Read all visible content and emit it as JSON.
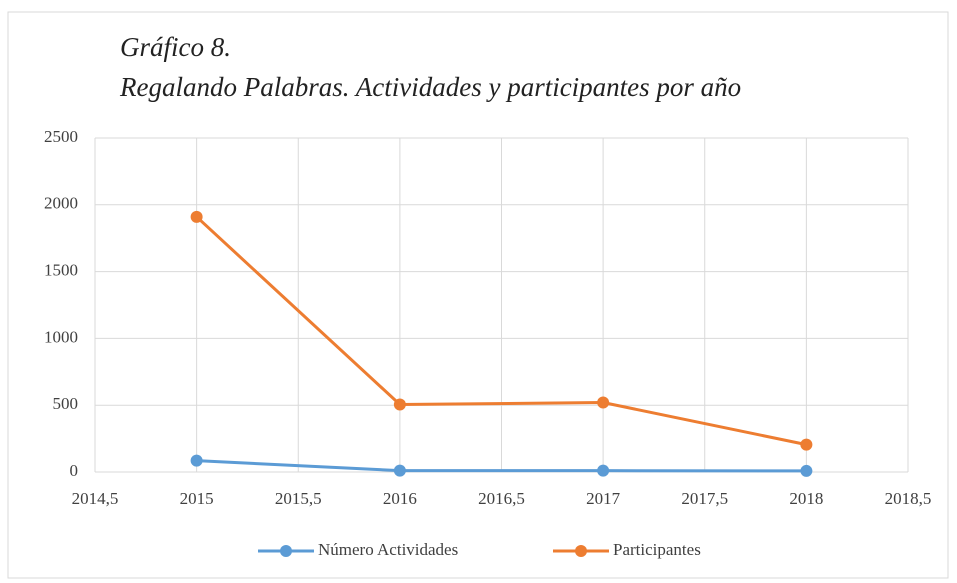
{
  "chart_data": {
    "type": "line",
    "title": "Gráfico 8.",
    "subtitle": "Regalando Palabras. Actividades y participantes por año",
    "x": [
      2015,
      2016,
      2017,
      2018
    ],
    "series": [
      {
        "name": "Número Actividades",
        "color": "#5b9bd5",
        "values": [
          85,
          10,
          10,
          8
        ]
      },
      {
        "name": "Participantes",
        "color": "#ed7d31",
        "values": [
          1910,
          505,
          520,
          205
        ]
      }
    ],
    "xlim": [
      2014.5,
      2018.5
    ],
    "xticks": [
      {
        "value": 2014.5,
        "label": "2014,5"
      },
      2015,
      {
        "value": 2015.5,
        "label": "2015,5"
      },
      2016,
      {
        "value": 2016.5,
        "label": "2016,5"
      },
      2017,
      {
        "value": 2017.5,
        "label": "2017,5"
      },
      2018,
      {
        "value": 2018.5,
        "label": "2018,5"
      }
    ],
    "ylim": [
      0,
      2500
    ],
    "yticks": [
      0,
      500,
      1000,
      1500,
      2000,
      2500
    ],
    "grid": true,
    "legend": "bottom"
  }
}
